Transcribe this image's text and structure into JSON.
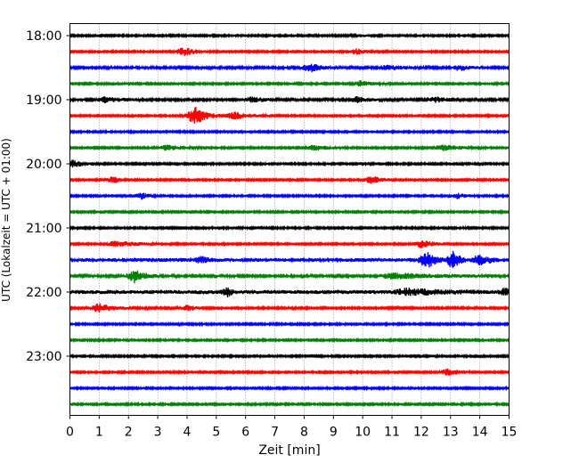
{
  "chart_data": {
    "type": "helicorder",
    "xlabel": "Zeit  [min]",
    "ylabel": "UTC (Lokalzeit = UTC + 01:00)",
    "xlim": [
      0,
      15
    ],
    "x_ticks": [
      "0",
      "1",
      "2",
      "3",
      "4",
      "5",
      "6",
      "7",
      "8",
      "9",
      "10",
      "11",
      "12",
      "13",
      "14",
      "15"
    ],
    "y_ticks": [
      "18:00",
      "19:00",
      "20:00",
      "21:00",
      "22:00",
      "23:00"
    ],
    "grid": "vertical dotted at each minute",
    "line_interval_min": 15,
    "colors": [
      "#000000",
      "#ff0000",
      "#0000ff",
      "#008000"
    ],
    "traces": [
      {
        "start": "18:00",
        "color": "#000000",
        "noise": 1,
        "events": [
          [
            10.0,
            1,
            0.3,
            0.5
          ]
        ]
      },
      {
        "start": "18:15",
        "color": "#ff0000",
        "noise": 1,
        "events": [
          [
            3.9,
            5,
            0.8,
            0.35
          ],
          [
            9.8,
            3,
            0.8,
            0.3
          ]
        ]
      },
      {
        "start": "18:30",
        "color": "#0000ff",
        "noise": 1.2,
        "events": [
          [
            8.2,
            5,
            0.8,
            0.35
          ],
          [
            10.8,
            3,
            1,
            0.3
          ],
          [
            13.3,
            3,
            1,
            0.3
          ]
        ]
      },
      {
        "start": "18:45",
        "color": "#008000",
        "noise": 1,
        "events": [
          [
            9.9,
            3,
            1,
            0.3
          ]
        ]
      },
      {
        "start": "19:00",
        "color": "#000000",
        "noise": 1.2,
        "events": [
          [
            1.2,
            3,
            1.2,
            0.3
          ],
          [
            6.2,
            3,
            1,
            0.3
          ],
          [
            9.8,
            3,
            0.8,
            0.3
          ],
          [
            12.5,
            3,
            0.8,
            0.3
          ]
        ]
      },
      {
        "start": "19:15",
        "color": "#ff0000",
        "noise": 1,
        "events": [
          [
            4.3,
            10,
            0.8,
            0.45
          ],
          [
            5.6,
            4,
            1.2,
            0.4
          ]
        ]
      },
      {
        "start": "19:30",
        "color": "#0000ff",
        "noise": 1,
        "events": []
      },
      {
        "start": "19:45",
        "color": "#008000",
        "noise": 1,
        "events": [
          [
            3.3,
            3,
            1.2,
            0.3
          ],
          [
            8.3,
            3,
            1,
            0.3
          ],
          [
            12.7,
            3,
            1.4,
            0.35
          ]
        ]
      },
      {
        "start": "20:00",
        "color": "#000000",
        "noise": 1,
        "events": [
          [
            0.1,
            4,
            0.9,
            0.3
          ]
        ]
      },
      {
        "start": "20:15",
        "color": "#ff0000",
        "noise": 1,
        "events": [
          [
            1.5,
            4,
            0.4,
            0.3
          ],
          [
            10.3,
            4,
            0.8,
            0.35
          ]
        ]
      },
      {
        "start": "20:30",
        "color": "#0000ff",
        "noise": 1,
        "events": [
          [
            2.4,
            4,
            0.6,
            0.3
          ],
          [
            13.2,
            3,
            0.8,
            0.3
          ]
        ]
      },
      {
        "start": "20:45",
        "color": "#008000",
        "noise": 1,
        "events": []
      },
      {
        "start": "21:00",
        "color": "#000000",
        "noise": 1,
        "events": []
      },
      {
        "start": "21:15",
        "color": "#ff0000",
        "noise": 1,
        "events": [
          [
            1.5,
            3,
            2,
            0.3
          ],
          [
            12.0,
            4,
            1,
            0.35
          ]
        ]
      },
      {
        "start": "21:30",
        "color": "#0000ff",
        "noise": 2,
        "events": [
          [
            4.5,
            3,
            0.5,
            0.3
          ],
          [
            12.2,
            9,
            0.6,
            0.35
          ],
          [
            13.1,
            10,
            0.4,
            0.3
          ],
          [
            14.0,
            6,
            0.7,
            0.3
          ]
        ]
      },
      {
        "start": "21:45",
        "color": "#008000",
        "noise": 1.3,
        "events": [
          [
            2.2,
            7,
            0.8,
            0.35
          ],
          [
            11.0,
            3,
            3.5,
            0.5
          ]
        ]
      },
      {
        "start": "22:00",
        "color": "#000000",
        "noise": 2.2,
        "events": [
          [
            5.4,
            4,
            0.3,
            0.3
          ],
          [
            11.5,
            3,
            2.5,
            0.5
          ],
          [
            14.9,
            4,
            0.2,
            0.3
          ]
        ]
      },
      {
        "start": "22:15",
        "color": "#ff0000",
        "noise": 1.1,
        "events": [
          [
            1.0,
            5,
            1,
            0.4
          ],
          [
            4.0,
            3,
            0.7,
            0.3
          ]
        ]
      },
      {
        "start": "22:30",
        "color": "#0000ff",
        "noise": 1,
        "events": []
      },
      {
        "start": "22:45",
        "color": "#008000",
        "noise": 1,
        "events": []
      },
      {
        "start": "23:00",
        "color": "#000000",
        "noise": 1,
        "events": []
      },
      {
        "start": "23:15",
        "color": "#ff0000",
        "noise": 1,
        "events": [
          [
            12.9,
            4,
            0.8,
            0.3
          ]
        ]
      },
      {
        "start": "23:30",
        "color": "#0000ff",
        "noise": 1,
        "events": []
      },
      {
        "start": "23:45",
        "color": "#008000",
        "noise": 1,
        "events": []
      }
    ]
  }
}
